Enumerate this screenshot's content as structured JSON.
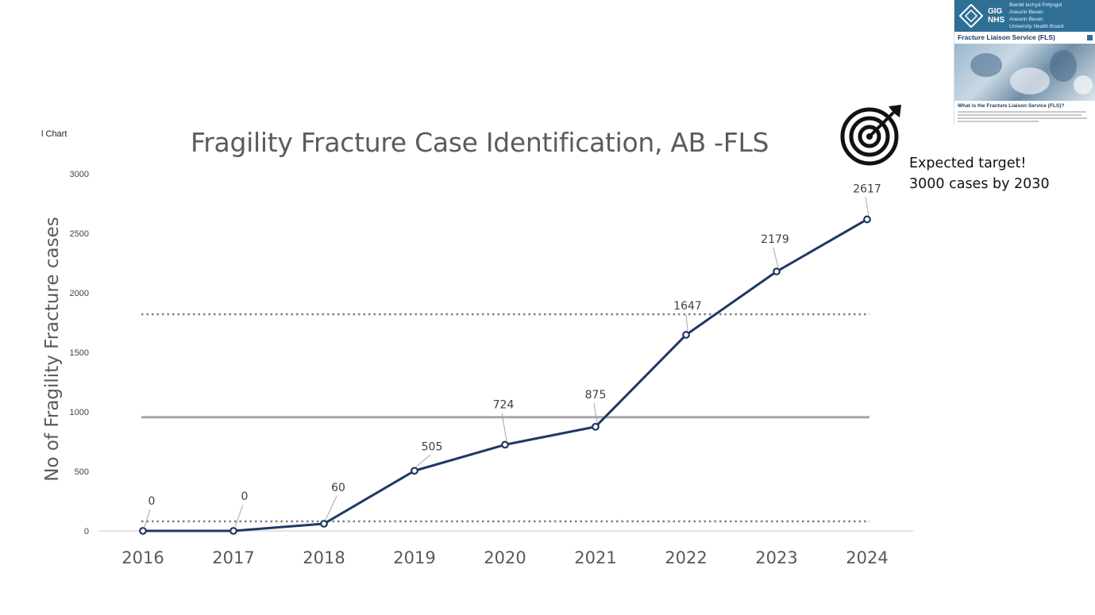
{
  "corner_label": "l Chart",
  "leaflet": {
    "org_line1": "Bwrdd Iechyd Prifysgol",
    "org_line2": "Aneurin Bevan",
    "org_line3": "Aneurin Bevan",
    "org_line4": "University Health Board",
    "logo_text_1": "GIG",
    "logo_text_2": "NHS",
    "title": "Fracture Liaison Service (FLS)",
    "question": "What is the Fracture Liaison Service (FLS)?"
  },
  "target_note": {
    "line1": "Expected target!",
    "line2": "3000 cases by 2030",
    "icon": "target-icon"
  },
  "colors": {
    "line": "#1f3864",
    "reference_solid": "#a6a6a6",
    "reference_dotted": "#7f7f7f",
    "axis": "#d9d9d9"
  },
  "chart_data": {
    "type": "line",
    "title": "Fragility Fracture Case Identification, AB -FLS",
    "xlabel": "",
    "ylabel": "No of Fragility Fracture cases",
    "x": [
      "2016",
      "2017",
      "2018",
      "2019",
      "2020",
      "2021",
      "2022",
      "2023",
      "2024"
    ],
    "series": [
      {
        "values": [
          0,
          0,
          60,
          505,
          724,
          875,
          1647,
          2179,
          2617
        ]
      }
    ],
    "data_labels": [
      "0",
      "0",
      "60",
      "505",
      "724",
      "875",
      "1647",
      "2179",
      "2617"
    ],
    "y_ticks": [
      "0",
      "500",
      "1000",
      "1500",
      "2000",
      "2500",
      "3000"
    ],
    "ylim": [
      0,
      3000
    ],
    "reference_lines": [
      {
        "style": "solid",
        "value": 955
      },
      {
        "style": "dotted",
        "value": 1820
      },
      {
        "style": "dotted",
        "value": 80
      }
    ],
    "grid": false
  }
}
